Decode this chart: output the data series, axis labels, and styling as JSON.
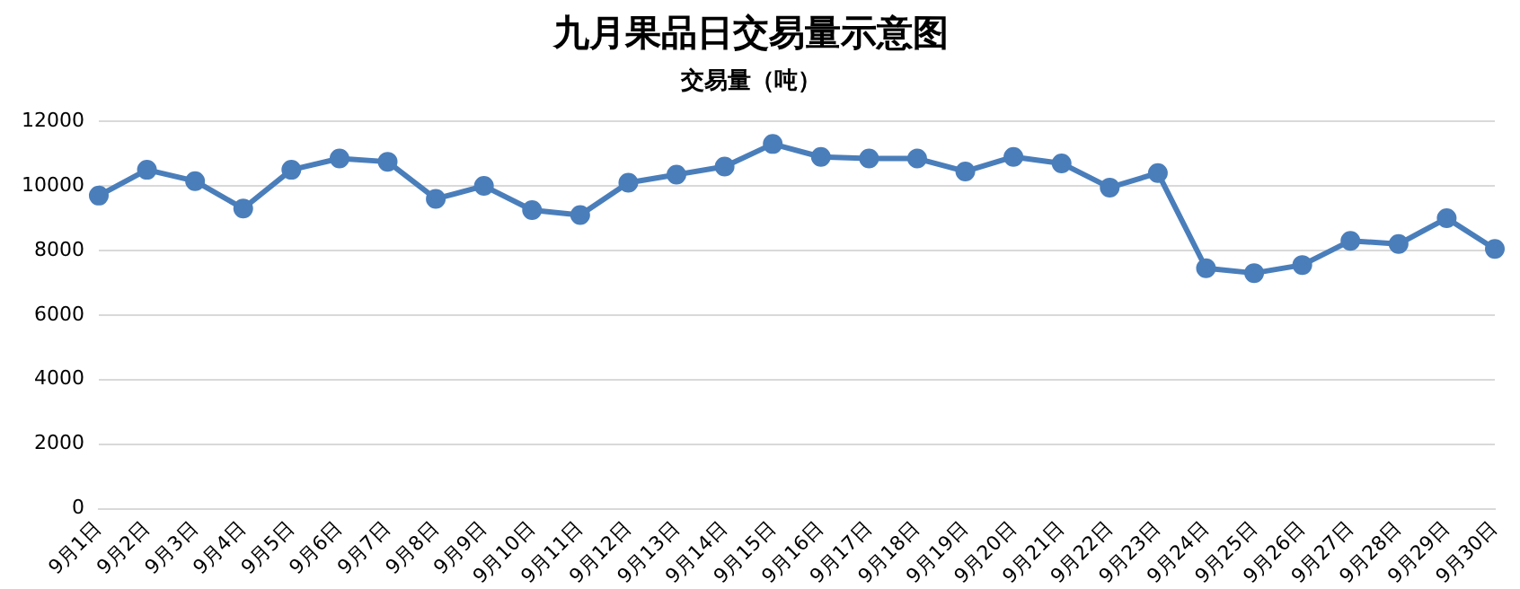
{
  "chart_data": {
    "type": "line",
    "title": "九月果品日交易量示意图",
    "subtitle": "交易量（吨）",
    "categories": [
      "9月1日",
      "9月2日",
      "9月3日",
      "9月4日",
      "9月5日",
      "9月6日",
      "9月7日",
      "9月8日",
      "9月9日",
      "9月10日",
      "9月11日",
      "9月12日",
      "9月13日",
      "9月14日",
      "9月15日",
      "9月16日",
      "9月17日",
      "9月18日",
      "9月19日",
      "9月20日",
      "9月21日",
      "9月22日",
      "9月23日",
      "9月24日",
      "9月25日",
      "9月26日",
      "9月27日",
      "9月28日",
      "9月29日",
      "9月30日"
    ],
    "series": [
      {
        "color": "#4a7ebb",
        "values": [
          9700,
          10500,
          10150,
          9300,
          10500,
          10850,
          10750,
          9600,
          10000,
          9250,
          9100,
          10100,
          10350,
          10600,
          11300,
          10900,
          10850,
          10850,
          10450,
          10900,
          10700,
          9950,
          10400,
          7450,
          7300,
          7550,
          8300,
          8200,
          9000,
          8050
        ]
      }
    ],
    "ylim": [
      0,
      12000
    ],
    "yticks": [
      0,
      2000,
      4000,
      6000,
      8000,
      10000,
      12000
    ],
    "grid": "y",
    "legend": false,
    "marker": "circle",
    "line_style": "solid"
  }
}
